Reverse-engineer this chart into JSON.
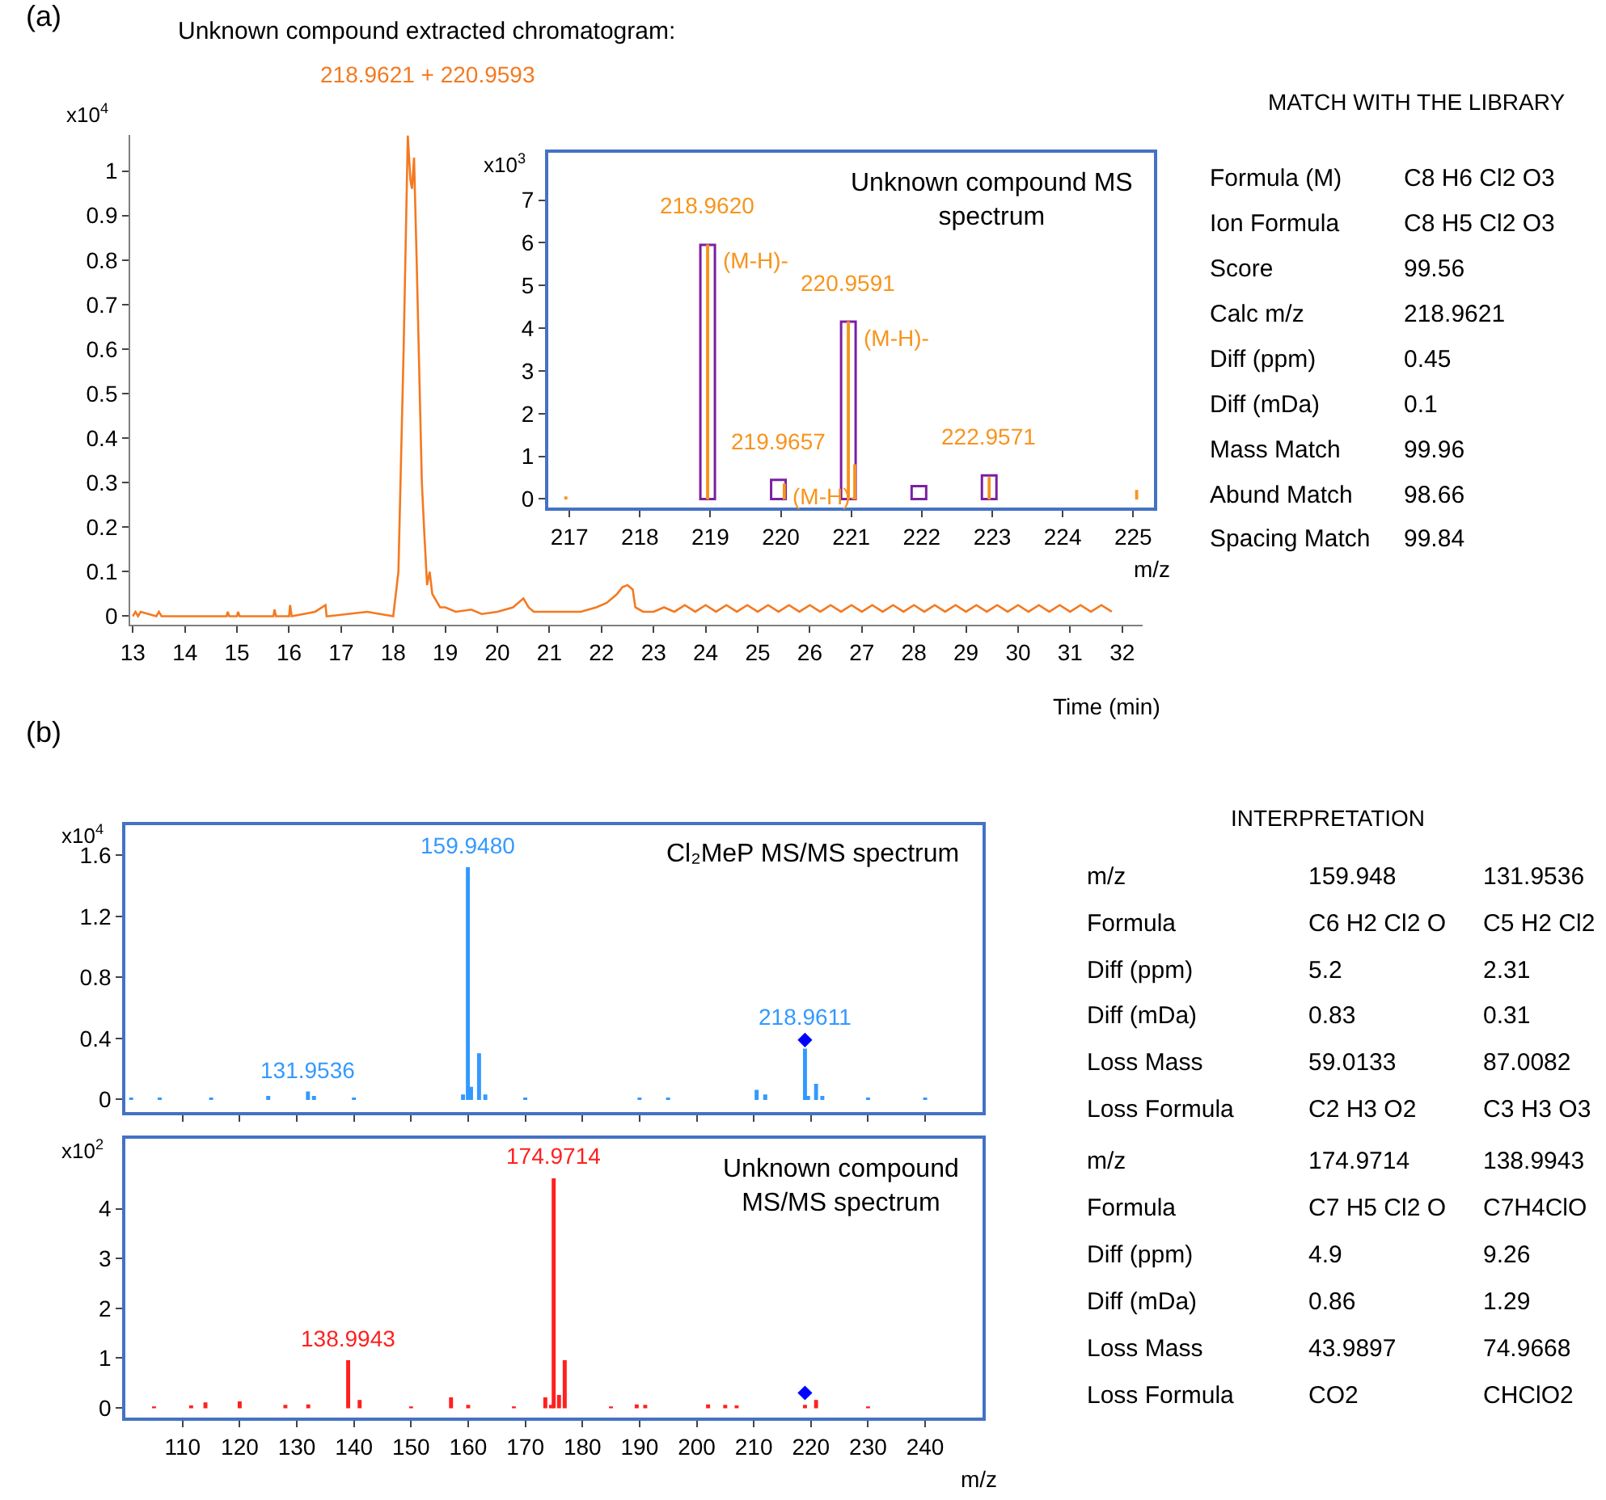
{
  "chart_data": [
    {
      "type": "line",
      "title": "Unknown compound extracted chromatogram:",
      "subtitle": "218.9621 + 220.9593",
      "xlabel": "Time (min)",
      "ylabel": "x10$^{4}$",
      "annotations": [
        "(a)"
      ],
      "x": [
        13.0,
        13.05,
        13.1,
        13.15,
        13.45,
        13.5,
        13.55,
        14.8,
        14.82,
        14.85,
        15.0,
        15.02,
        15.05,
        15.7,
        15.72,
        15.75,
        16.0,
        16.02,
        16.05,
        16.5,
        16.7,
        16.72,
        16.75,
        17.5,
        18.0,
        18.1,
        18.2,
        18.28,
        18.33,
        18.36,
        18.4,
        18.45,
        18.5,
        18.55,
        18.6,
        18.65,
        18.7,
        18.75,
        18.8,
        18.9,
        19.0,
        19.2,
        19.5,
        19.7,
        20.0,
        20.3,
        20.4,
        20.5,
        20.6,
        20.7,
        21.0,
        21.3,
        21.6,
        21.9,
        22.1,
        22.3,
        22.4,
        22.5,
        22.6,
        22.65,
        22.8,
        23.0,
        23.2,
        23.4,
        23.6,
        23.8,
        24.0,
        24.2,
        24.4,
        24.6,
        24.8,
        25.0,
        25.2,
        25.4,
        25.6,
        25.8,
        26.0,
        26.2,
        26.4,
        26.6,
        26.8,
        27.0,
        27.2,
        27.4,
        27.6,
        27.8,
        28.0,
        28.2,
        28.4,
        28.6,
        28.8,
        29.0,
        29.2,
        29.4,
        29.6,
        29.8,
        30.0,
        30.2,
        30.4,
        30.6,
        30.8,
        31.0,
        31.2,
        31.4,
        31.6,
        31.8
      ],
      "series": [
        {
          "color": "#f47920",
          "values": [
            0.0,
            0.01,
            0.0,
            0.01,
            0.0,
            0.01,
            0.0,
            0.0,
            0.01,
            0.0,
            0.0,
            0.01,
            0.0,
            0.0,
            0.015,
            0.0,
            0.0,
            0.025,
            0.0,
            0.01,
            0.025,
            0.0,
            0.0,
            0.01,
            0.0,
            0.1,
            0.6,
            1.08,
            0.98,
            0.96,
            1.03,
            0.8,
            0.55,
            0.3,
            0.18,
            0.07,
            0.1,
            0.05,
            0.04,
            0.02,
            0.02,
            0.01,
            0.015,
            0.005,
            0.01,
            0.02,
            0.03,
            0.04,
            0.02,
            0.01,
            0.01,
            0.01,
            0.01,
            0.02,
            0.03,
            0.05,
            0.065,
            0.07,
            0.06,
            0.02,
            0.01,
            0.01,
            0.02,
            0.01,
            0.025,
            0.01,
            0.025,
            0.01,
            0.025,
            0.01,
            0.025,
            0.01,
            0.025,
            0.01,
            0.025,
            0.01,
            0.025,
            0.01,
            0.025,
            0.01,
            0.025,
            0.01,
            0.025,
            0.01,
            0.025,
            0.01,
            0.025,
            0.01,
            0.025,
            0.01,
            0.025,
            0.01,
            0.025,
            0.01,
            0.025,
            0.01,
            0.025,
            0.01,
            0.025,
            0.01,
            0.025,
            0.01,
            0.025,
            0.01,
            0.025,
            0.01
          ]
        }
      ],
      "xlim": [
        12.95,
        32.4
      ],
      "ylim": [
        -0.02,
        1.08
      ],
      "xticks": [
        13,
        14,
        15,
        16,
        17,
        18,
        19,
        20,
        21,
        22,
        23,
        24,
        25,
        26,
        27,
        28,
        29,
        30,
        31,
        32
      ],
      "yticks": [
        0,
        0.1,
        0.2,
        0.3,
        0.4,
        0.5,
        0.6,
        0.7,
        0.8,
        0.9,
        1
      ]
    },
    {
      "type": "bar",
      "title": "Unknown compound MS spectrum",
      "xlabel": "m/z",
      "ylabel": "x10$^{3}$",
      "series": [
        {
          "color": "#7b1fa2",
          "x": [
            218.962,
            219.966,
            220.959,
            221.96,
            222.957
          ],
          "values": [
            5.95,
            0.45,
            4.15,
            0.3,
            0.55
          ]
        },
        {
          "color": "#f7941d",
          "x": [
            216.95,
            218.962,
            220.05,
            220.959,
            221.05,
            222.957,
            225.05
          ],
          "values": [
            0.05,
            5.95,
            0.35,
            4.15,
            0.8,
            0.5,
            0.2
          ]
        }
      ],
      "annotations": [
        {
          "text": "218.9620",
          "x": 218.962,
          "y": 5.95
        },
        {
          "text": "(M-H)-",
          "x": 218.962,
          "y": 5.95
        },
        {
          "text": "219.9657",
          "x": 219.966,
          "y": 0.45
        },
        {
          "text": "(M-H)-",
          "x": 219.966,
          "y": 0.45
        },
        {
          "text": "220.9591",
          "x": 220.959,
          "y": 4.15
        },
        {
          "text": "(M-H)-",
          "x": 220.959,
          "y": 4.15
        },
        {
          "text": "222.9571",
          "x": 222.957,
          "y": 0.55
        }
      ],
      "xlim": [
        216.7,
        225.3
      ],
      "ylim": [
        -0.2,
        8.1
      ],
      "xticks": [
        217,
        218,
        219,
        220,
        221,
        222,
        223,
        224,
        225
      ],
      "yticks": [
        0,
        1,
        2,
        3,
        4,
        5,
        6,
        7
      ]
    },
    {
      "type": "other",
      "title": "MATCH WITH THE LIBRARY",
      "y_categories": [
        "Formula (M)",
        "Ion Formula",
        "Score",
        "Calc m/z",
        "Diff (ppm)",
        "Diff (mDa)",
        "Mass Match",
        "Abund Match",
        "Spacing Match"
      ],
      "cell_labels": [
        [
          "C8 H6 Cl2 O3"
        ],
        [
          "C8 H5 Cl2 O3"
        ],
        [
          "99.56"
        ],
        [
          "218.9621"
        ],
        [
          "0.45"
        ],
        [
          "0.1"
        ],
        [
          "99.96"
        ],
        [
          "98.66"
        ],
        [
          "99.84"
        ]
      ]
    },
    {
      "type": "bar",
      "title": "Cl₂MeP MS/MS spectrum",
      "ylabel": "x10$^{4}$",
      "annotations": [
        "(b)",
        {
          "text": "131.9536",
          "x": 131.954,
          "y": 0.05
        },
        {
          "text": "159.9480",
          "x": 159.948,
          "y": 1.52
        },
        {
          "text": "218.9611",
          "x": 218.961,
          "y": 0.39
        }
      ],
      "series": [
        {
          "color": "#3399ff",
          "x": [
            101,
            106,
            115,
            125,
            131.954,
            133,
            140,
            159.1,
            159.948,
            160.5,
            161.9,
            163,
            170,
            190,
            195,
            210.5,
            212,
            218.961,
            219.5,
            220.9,
            222,
            230,
            240
          ],
          "values": [
            0.01,
            0.01,
            0.01,
            0.02,
            0.05,
            0.02,
            0.01,
            0.03,
            1.52,
            0.08,
            0.3,
            0.03,
            0.01,
            0.01,
            0.01,
            0.06,
            0.03,
            0.33,
            0.02,
            0.1,
            0.02,
            0.01,
            0.01
          ]
        },
        {
          "type": "scatter",
          "color": "#0000ff",
          "marker": "diamond",
          "x": [
            218.961
          ],
          "values": [
            0.39
          ]
        }
      ],
      "xlim": [
        100,
        250
      ],
      "ylim": [
        -0.08,
        1.8
      ],
      "xticks": [
        110,
        120,
        130,
        140,
        150,
        160,
        170,
        180,
        190,
        200,
        210,
        220,
        230,
        240
      ],
      "yticks": [
        0,
        0.4,
        0.8,
        1.2,
        1.6
      ],
      "tick_labels": "y"
    },
    {
      "type": "bar",
      "title": "Unknown compound MS/MS spectrum",
      "xlabel": "m/z",
      "ylabel": "x10$^{2}$",
      "annotations": [
        {
          "text": "138.9943",
          "x": 138.994,
          "y": 0.95
        },
        {
          "text": "174.9714",
          "x": 174.971,
          "y": 4.6
        }
      ],
      "series": [
        {
          "color": "#ff2020",
          "x": [
            105,
            111.5,
            114,
            120,
            128,
            132,
            138.994,
            141,
            150,
            157,
            160,
            168,
            173.5,
            174.5,
            174.971,
            175.9,
            176.9,
            185,
            189.5,
            191,
            202,
            205,
            207,
            218.96,
            220.9,
            230
          ],
          "values": [
            0.02,
            0.04,
            0.1,
            0.12,
            0.05,
            0.06,
            0.95,
            0.15,
            0.02,
            0.2,
            0.05,
            0.02,
            0.2,
            0.05,
            4.6,
            0.25,
            0.95,
            0.02,
            0.06,
            0.05,
            0.06,
            0.05,
            0.04,
            0.05,
            0.15,
            0.02
          ]
        },
        {
          "type": "scatter",
          "color": "#0000ff",
          "marker": "diamond",
          "x": [
            218.96
          ],
          "values": [
            0.3
          ]
        }
      ],
      "xlim": [
        100,
        250
      ],
      "ylim": [
        -0.2,
        5.4
      ],
      "xticks": [
        110,
        120,
        130,
        140,
        150,
        160,
        170,
        180,
        190,
        200,
        210,
        220,
        230,
        240
      ],
      "yticks": [
        0,
        1,
        2,
        3,
        4
      ]
    },
    {
      "type": "other",
      "title": "INTERPRETATION",
      "y_categories": [
        "m/z",
        "Formula",
        "Diff (ppm)",
        "Diff (mDa)",
        "Loss Mass",
        "Loss Formula"
      ],
      "cell_labels": [
        [
          "159.948",
          "131.9536"
        ],
        [
          "C6 H2 Cl2 O",
          "C5 H2 Cl2"
        ],
        [
          "5.2",
          "2.31"
        ],
        [
          "0.83",
          "0.31"
        ],
        [
          "59.0133",
          "87.0082"
        ],
        [
          "C2 H3 O2",
          "C3 H3 O3"
        ]
      ]
    },
    {
      "type": "other",
      "y_categories": [
        "m/z",
        "Formula",
        "Diff (ppm)",
        "Diff (mDa)",
        "Loss Mass",
        "Loss Formula"
      ],
      "cell_labels": [
        [
          "174.9714",
          "138.9943"
        ],
        [
          "C7 H5 Cl2 O",
          "C7H4ClO"
        ],
        [
          "4.9",
          "9.26"
        ],
        [
          "0.86",
          "1.29"
        ],
        [
          "43.9897",
          "74.9668"
        ],
        [
          "CO2",
          "CHClO2"
        ]
      ]
    }
  ]
}
